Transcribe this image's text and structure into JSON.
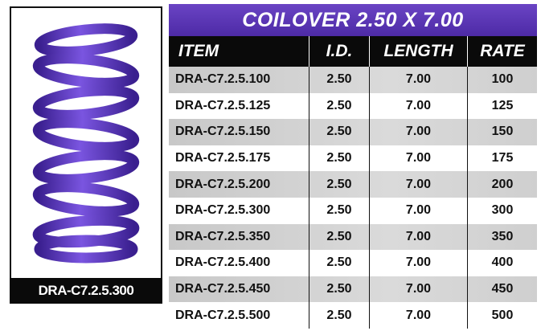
{
  "image_caption": "DRA-C7.2.5.300",
  "table": {
    "title": "COILOVER 2.50 X 7.00",
    "columns": [
      "ITEM",
      "I.D.",
      "LENGTH",
      "RATE"
    ],
    "rows": [
      [
        "DRA-C7.2.5.100",
        "2.50",
        "7.00",
        "100"
      ],
      [
        "DRA-C7.2.5.125",
        "2.50",
        "7.00",
        "125"
      ],
      [
        "DRA-C7.2.5.150",
        "2.50",
        "7.00",
        "150"
      ],
      [
        "DRA-C7.2.5.175",
        "2.50",
        "7.00",
        "175"
      ],
      [
        "DRA-C7.2.5.200",
        "2.50",
        "7.00",
        "200"
      ],
      [
        "DRA-C7.2.5.300",
        "2.50",
        "7.00",
        "300"
      ],
      [
        "DRA-C7.2.5.350",
        "2.50",
        "7.00",
        "350"
      ],
      [
        "DRA-C7.2.5.400",
        "2.50",
        "7.00",
        "400"
      ],
      [
        "DRA-C7.2.5.450",
        "2.50",
        "7.00",
        "450"
      ],
      [
        "DRA-C7.2.5.500",
        "2.50",
        "7.00",
        "500"
      ]
    ]
  }
}
